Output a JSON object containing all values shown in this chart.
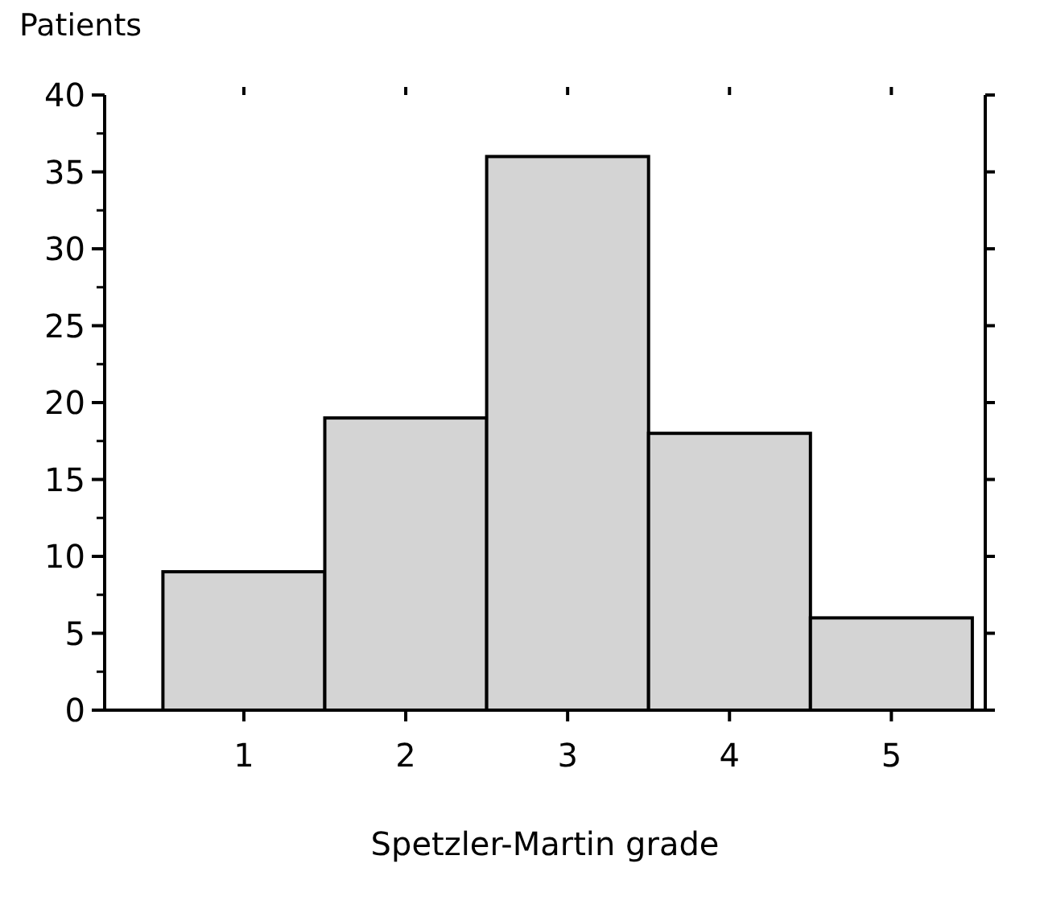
{
  "chart_data": {
    "type": "bar",
    "xlabel": "Spetzler-Martin grade",
    "ylabel": "Patients",
    "categories": [
      "1",
      "2",
      "3",
      "4",
      "5"
    ],
    "values": [
      9,
      19,
      36,
      18,
      6
    ],
    "color": "#d4d4d4",
    "ylim": [
      0,
      40
    ],
    "yticks": [
      0,
      5,
      10,
      15,
      20,
      25,
      30,
      35,
      40
    ]
  }
}
